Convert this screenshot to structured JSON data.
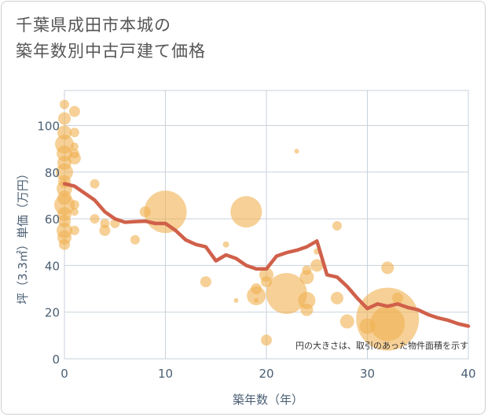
{
  "chart_data": {
    "type": "scatter",
    "title_line1": "千葉県成田市本城の",
    "title_line2": "築年数別中古戸建て価格",
    "xlabel": "築年数（年）",
    "ylabel": "坪（3.3㎡）単価（万円）",
    "xlim": [
      0,
      40
    ],
    "ylim": [
      0,
      115
    ],
    "x_ticks": [
      0,
      10,
      20,
      30,
      40
    ],
    "y_ticks": [
      0,
      20,
      40,
      60,
      80,
      100
    ],
    "note": "円の大きさは、取引のあった物件面積を示す",
    "bubble_color": "#f0b050",
    "line_color": "#d0604a",
    "bubbles": [
      {
        "x": 0,
        "y": 109,
        "s": 6
      },
      {
        "x": 0,
        "y": 103,
        "s": 8
      },
      {
        "x": 0,
        "y": 97,
        "s": 9
      },
      {
        "x": 0,
        "y": 92,
        "s": 12
      },
      {
        "x": 0,
        "y": 88,
        "s": 10
      },
      {
        "x": 0,
        "y": 84,
        "s": 9
      },
      {
        "x": 0,
        "y": 80,
        "s": 11
      },
      {
        "x": 0,
        "y": 76,
        "s": 8
      },
      {
        "x": 0,
        "y": 73,
        "s": 10
      },
      {
        "x": 0,
        "y": 69,
        "s": 9
      },
      {
        "x": 0,
        "y": 66,
        "s": 13
      },
      {
        "x": 0,
        "y": 62,
        "s": 9
      },
      {
        "x": 0,
        "y": 59,
        "s": 8
      },
      {
        "x": 0,
        "y": 55,
        "s": 10
      },
      {
        "x": 0,
        "y": 52,
        "s": 9
      },
      {
        "x": 0,
        "y": 49,
        "s": 7
      },
      {
        "x": 1,
        "y": 106,
        "s": 7
      },
      {
        "x": 1,
        "y": 97,
        "s": 6
      },
      {
        "x": 1,
        "y": 91,
        "s": 5
      },
      {
        "x": 1,
        "y": 88,
        "s": 6
      },
      {
        "x": 1,
        "y": 86,
        "s": 8
      },
      {
        "x": 1,
        "y": 66,
        "s": 6
      },
      {
        "x": 1,
        "y": 63,
        "s": 5
      },
      {
        "x": 1,
        "y": 55,
        "s": 6
      },
      {
        "x": 3,
        "y": 75,
        "s": 6
      },
      {
        "x": 3,
        "y": 60,
        "s": 6
      },
      {
        "x": 4,
        "y": 58,
        "s": 6
      },
      {
        "x": 4,
        "y": 55,
        "s": 7
      },
      {
        "x": 5,
        "y": 58,
        "s": 6
      },
      {
        "x": 7,
        "y": 51,
        "s": 6
      },
      {
        "x": 8,
        "y": 63,
        "s": 7
      },
      {
        "x": 10,
        "y": 63,
        "s": 27
      },
      {
        "x": 14,
        "y": 33,
        "s": 7
      },
      {
        "x": 16,
        "y": 49,
        "s": 4
      },
      {
        "x": 17,
        "y": 25,
        "s": 3
      },
      {
        "x": 18,
        "y": 63,
        "s": 20
      },
      {
        "x": 19,
        "y": 30,
        "s": 7
      },
      {
        "x": 19,
        "y": 27,
        "s": 12
      },
      {
        "x": 19,
        "y": 25,
        "s": 3
      },
      {
        "x": 20,
        "y": 36,
        "s": 9
      },
      {
        "x": 20,
        "y": 33,
        "s": 7
      },
      {
        "x": 20,
        "y": 8,
        "s": 7
      },
      {
        "x": 22,
        "y": 28,
        "s": 26
      },
      {
        "x": 23,
        "y": 89,
        "s": 3
      },
      {
        "x": 24,
        "y": 38,
        "s": 6
      },
      {
        "x": 24,
        "y": 35,
        "s": 9
      },
      {
        "x": 24,
        "y": 25,
        "s": 11
      },
      {
        "x": 24,
        "y": 21,
        "s": 8
      },
      {
        "x": 25,
        "y": 40,
        "s": 8
      },
      {
        "x": 25,
        "y": 46,
        "s": 4
      },
      {
        "x": 27,
        "y": 57,
        "s": 6
      },
      {
        "x": 27,
        "y": 26,
        "s": 8
      },
      {
        "x": 28,
        "y": 16,
        "s": 9
      },
      {
        "x": 30,
        "y": 14,
        "s": 10
      },
      {
        "x": 32,
        "y": 39,
        "s": 8
      },
      {
        "x": 32,
        "y": 17,
        "s": 40
      },
      {
        "x": 32,
        "y": 15,
        "s": 22
      },
      {
        "x": 33,
        "y": 26,
        "s": 7
      }
    ],
    "series": [
      {
        "name": "trend",
        "x": [
          0,
          1,
          2,
          3,
          4,
          5,
          6,
          7,
          8,
          9,
          10,
          11,
          12,
          13,
          14,
          15,
          16,
          17,
          18,
          19,
          20,
          21,
          22,
          23,
          24,
          25,
          26,
          27,
          28,
          29,
          30,
          31,
          32,
          33,
          34,
          35,
          36,
          37,
          38,
          39,
          40
        ],
        "values": [
          75,
          74,
          71,
          68,
          63,
          60,
          58.5,
          58.8,
          59,
          58,
          58,
          55,
          51,
          49,
          48,
          42,
          44.5,
          43,
          40,
          38.5,
          38.5,
          44,
          45.5,
          46.5,
          48,
          50.5,
          36,
          35,
          31,
          26,
          21.5,
          23.5,
          22.5,
          23.5,
          22,
          21,
          19,
          17.5,
          16.5,
          15,
          14
        ]
      }
    ]
  }
}
